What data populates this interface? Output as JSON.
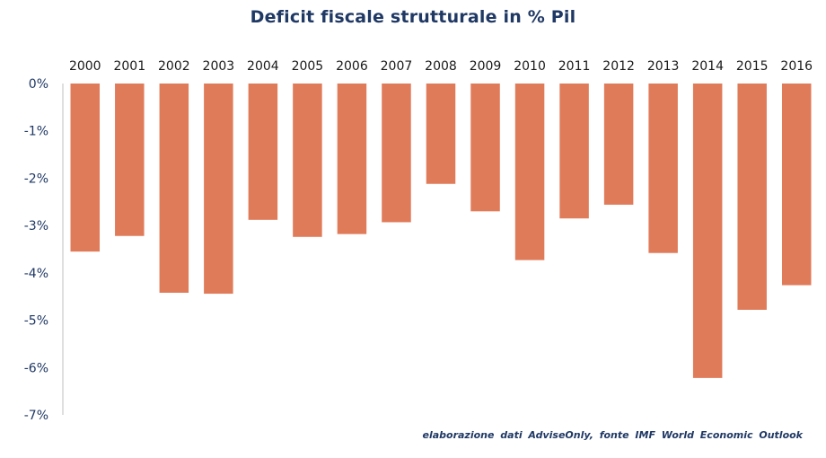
{
  "chart_data": {
    "type": "bar",
    "title": "Deficit fiscale strutturale  in % Pil",
    "categories": [
      "2000",
      "2001",
      "2002",
      "2003",
      "2004",
      "2005",
      "2006",
      "2007",
      "2008",
      "2009",
      "2010",
      "2011",
      "2012",
      "2013",
      "2014",
      "2015",
      "2016"
    ],
    "values": [
      -3.55,
      -3.22,
      -4.42,
      -4.44,
      -2.88,
      -3.24,
      -3.18,
      -2.93,
      -2.12,
      -2.7,
      -3.73,
      -2.85,
      -2.56,
      -3.58,
      -6.22,
      -4.78,
      -4.26
    ],
    "xlabel": "",
    "ylabel": "",
    "ylim": [
      -7,
      0
    ],
    "yticks": [
      "0%",
      "-1%",
      "-2%",
      "-3%",
      "-4%",
      "-5%",
      "-6%",
      "-7%"
    ],
    "x_axis_position": "top",
    "grid": false,
    "bar_color": "#e07b5a",
    "axis_text_color": "#1f3864",
    "source_note": "elaborazione  dati AdviseOnly, fonte IMF  World  Economic  Outlook"
  }
}
